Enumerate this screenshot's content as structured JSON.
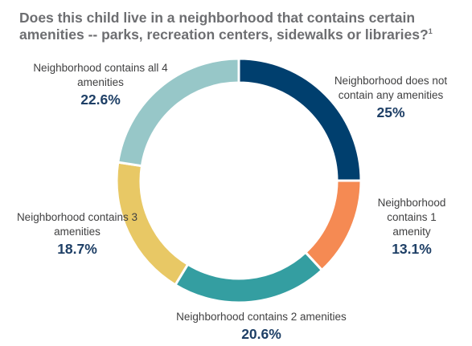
{
  "chart_data": {
    "type": "pie",
    "title": "Does this child live in a neighborhood that contains certain amenities -- parks, recreation centers, sidewalks or libraries?",
    "title_footnote": "1",
    "categories": [
      "Neighborhood does not contain any amenities",
      "Neighborhood contains 1 amenity",
      "Neighborhood contains 2 amenities",
      "Neighborhood contains 3 amenities",
      "Neighborhood contains all 4 amenities"
    ],
    "values": [
      25,
      13.1,
      20.6,
      18.7,
      22.6
    ],
    "value_labels": [
      "25%",
      "13.1%",
      "20.6%",
      "18.7%",
      "22.6%"
    ],
    "colors": [
      "#003f6e",
      "#f58a53",
      "#349ea1",
      "#e8c865",
      "#97c7c8"
    ],
    "donut": true,
    "start": "12 o'clock",
    "direction": "clockwise",
    "legend": "none"
  }
}
